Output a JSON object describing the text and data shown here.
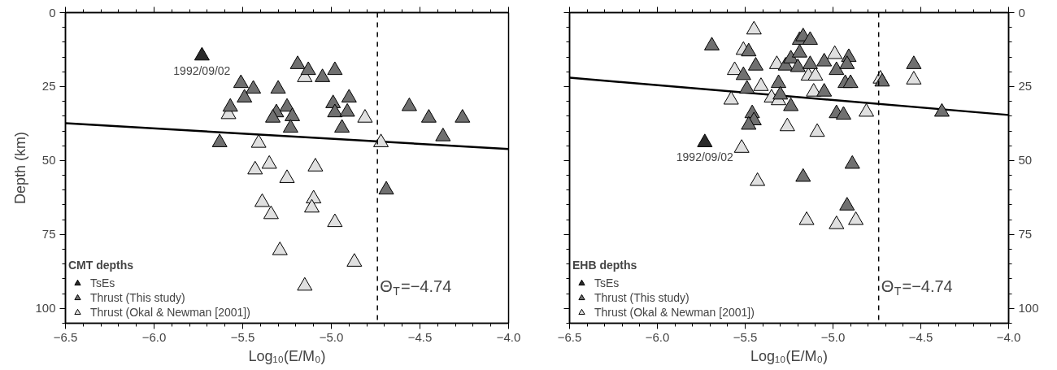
{
  "chart_data": [
    {
      "type": "scatter",
      "xlabel": "Log₁₀(E/M₀)",
      "ylabel": "Depth (km)",
      "legend_title": "CMT depths",
      "legend": "bottom left",
      "marker": "triangle",
      "xlim": [
        -6.5,
        -4.0
      ],
      "xticks": [
        {
          "value": -6.5,
          "label": "−6.5"
        },
        {
          "value": -6.0,
          "label": "−6.0"
        },
        {
          "value": -5.5,
          "label": "−5.5"
        },
        {
          "value": -5.0,
          "label": "−5.0"
        },
        {
          "value": -4.5,
          "label": "−4.5"
        },
        {
          "value": -4.0,
          "label": "−4.0"
        }
      ],
      "ylim": [
        105,
        0
      ],
      "yticks": [
        0,
        25,
        50,
        75,
        100
      ],
      "ref_lines": [
        {
          "axis": "x",
          "value": -4.74,
          "label": "Θ$_{T}$=−4.74",
          "line_style": "dashed",
          "color": "#000000"
        }
      ],
      "annotations": [
        {
          "text": "1992/09/02",
          "x": -5.73,
          "y": 14.6
        }
      ],
      "series": [
        {
          "type": "line",
          "marker": "none",
          "color": "#000000",
          "line_style": "solid",
          "x": [
            -6.5,
            -4.0
          ],
          "values": [
            37.4,
            46.1
          ]
        },
        {
          "name": "Thrust (Okal & Newman [2001])",
          "color": "#e0e0e0",
          "x": [
            -5.15,
            -5.58,
            -5.41,
            -5.35,
            -5.43,
            -5.09,
            -5.25,
            -5.39,
            -5.34,
            -5.1,
            -5.11,
            -5.29,
            -5.15,
            -4.81,
            -4.72,
            -4.98,
            -4.87
          ],
          "values": [
            21.9,
            34.4,
            44.1,
            51.2,
            53.1,
            52.1,
            56.0,
            64.1,
            68.2,
            62.9,
            66.0,
            80.4,
            92.4,
            35.6,
            43.9,
            70.9,
            84.3
          ]
        },
        {
          "name": "Thrust (This study)",
          "color": "#707070",
          "x": [
            -5.19,
            -5.13,
            -5.05,
            -5.51,
            -5.44,
            -5.3,
            -5.49,
            -5.57,
            -5.25,
            -5.31,
            -5.33,
            -5.22,
            -5.23,
            -5.63,
            -4.98,
            -4.99,
            -4.9,
            -4.98,
            -4.91,
            -4.94,
            -4.56,
            -4.45,
            -4.26,
            -4.37,
            -4.69
          ],
          "values": [
            17.5,
            19.5,
            21.9,
            23.9,
            25.8,
            25.8,
            28.8,
            31.9,
            31.9,
            33.8,
            35.6,
            35.1,
            39.0,
            43.9,
            19.5,
            30.7,
            28.8,
            33.8,
            33.6,
            39.0,
            31.7,
            35.6,
            35.6,
            41.9,
            59.9
          ]
        },
        {
          "name": "TsEs",
          "color": "#2a2a2a",
          "x": [
            -5.73
          ],
          "values": [
            14.6
          ]
        }
      ]
    },
    {
      "type": "scatter",
      "xlabel": "Log₁₀(E/M₀)",
      "legend_title": "EHB depths",
      "legend": "bottom left",
      "marker": "triangle",
      "xlim": [
        -6.5,
        -4.0
      ],
      "xticks": [
        {
          "value": -6.5,
          "label": "−6.5"
        },
        {
          "value": -6.0,
          "label": "−6.0"
        },
        {
          "value": -5.5,
          "label": "−5.5"
        },
        {
          "value": -5.0,
          "label": "−5.0"
        },
        {
          "value": -4.5,
          "label": "−4.5"
        },
        {
          "value": -4.0,
          "label": "−4.0"
        }
      ],
      "ylim": [
        105,
        0
      ],
      "yticks": [
        0,
        25,
        50,
        75,
        100
      ],
      "ref_lines": [
        {
          "axis": "x",
          "value": -4.74,
          "label": "Θ$_{T}$=−4.74",
          "line_style": "dashed",
          "color": "#000000"
        }
      ],
      "annotations": [
        {
          "text": "1992/09/02",
          "x": -5.73,
          "y": 43.9
        }
      ],
      "series": [
        {
          "type": "line",
          "marker": "none",
          "color": "#000000",
          "line_style": "solid",
          "x": [
            -6.5,
            -4.0
          ],
          "values": [
            22.0,
            34.6
          ]
        },
        {
          "name": "Thrust (Okal & Newman [2001])",
          "color": "#e0e0e0",
          "x": [
            -5.45,
            -5.51,
            -5.56,
            -5.41,
            -5.58,
            -5.35,
            -5.31,
            -5.32,
            -5.26,
            -5.52,
            -5.43,
            -5.14,
            -5.1,
            -4.99,
            -5.11,
            -5.09,
            -4.81,
            -4.54,
            -4.73,
            -5.15,
            -4.98,
            -4.87
          ],
          "values": [
            5.8,
            12.7,
            19.5,
            24.9,
            29.5,
            28.8,
            29.7,
            17.5,
            38.5,
            45.8,
            57.0,
            21.4,
            21.4,
            14.1,
            26.8,
            40.4,
            33.6,
            22.7,
            22.4,
            70.2,
            71.6,
            70.2
          ]
        },
        {
          "name": "Thrust (This study)",
          "color": "#707070",
          "x": [
            -5.69,
            -5.48,
            -5.44,
            -5.51,
            -5.49,
            -5.31,
            -5.27,
            -5.24,
            -5.19,
            -5.19,
            -5.3,
            -5.24,
            -5.46,
            -5.45,
            -5.48,
            -5.17,
            -5.13,
            -5.2,
            -5.13,
            -5.05,
            -4.98,
            -4.91,
            -4.92,
            -4.93,
            -4.9,
            -5.05,
            -4.98,
            -4.94,
            -4.72,
            -4.54,
            -4.38,
            -4.89,
            -5.17,
            -4.92
          ],
          "values": [
            11.2,
            13.2,
            18.0,
            21.2,
            25.8,
            23.9,
            18.0,
            15.6,
            13.6,
            9.3,
            27.8,
            31.7,
            34.1,
            36.5,
            38.0,
            8.1,
            9.3,
            18.5,
            17.5,
            16.6,
            19.5,
            15.1,
            17.5,
            23.9,
            23.9,
            26.8,
            34.1,
            34.6,
            23.4,
            17.5,
            33.6,
            51.2,
            55.6,
            65.3
          ]
        },
        {
          "name": "TsEs",
          "color": "#2a2a2a",
          "x": [
            -5.73
          ],
          "values": [
            43.9
          ]
        }
      ]
    }
  ]
}
